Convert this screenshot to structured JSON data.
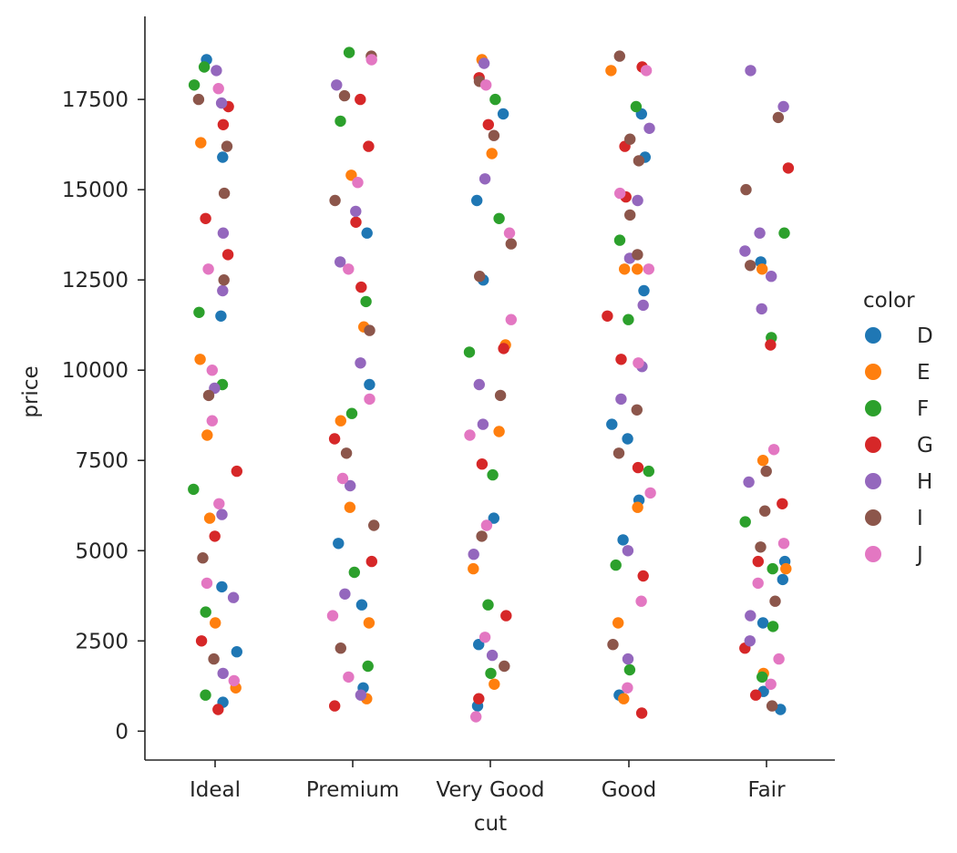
{
  "chart_data": {
    "type": "scatter",
    "subtype": "stripplot",
    "title": "",
    "xlabel": "cut",
    "ylabel": "price",
    "categories": [
      "Ideal",
      "Premium",
      "Very Good",
      "Good",
      "Fair"
    ],
    "ylim": [
      -800,
      19800
    ],
    "yticks": [
      0,
      2500,
      5000,
      7500,
      10000,
      12500,
      15000,
      17500
    ],
    "ytick_labels": [
      "0",
      "2500",
      "5000",
      "7500",
      "10000",
      "12500",
      "15000",
      "17500"
    ],
    "grid": false,
    "legend": {
      "title": "color",
      "placement": "right",
      "entries": [
        {
          "name": "D",
          "color": "#1f77b4"
        },
        {
          "name": "E",
          "color": "#ff7f0e"
        },
        {
          "name": "F",
          "color": "#2ca02c"
        },
        {
          "name": "G",
          "color": "#d62728"
        },
        {
          "name": "H",
          "color": "#9467bd"
        },
        {
          "name": "I",
          "color": "#8c564b"
        },
        {
          "name": "J",
          "color": "#e377c2"
        }
      ]
    },
    "series": [
      {
        "name": "D",
        "points": [
          [
            "Ideal",
            4000
          ],
          [
            "Ideal",
            18600
          ],
          [
            "Ideal",
            11500
          ],
          [
            "Ideal",
            2200
          ],
          [
            "Ideal",
            800
          ],
          [
            "Ideal",
            15900
          ],
          [
            "Premium",
            5200
          ],
          [
            "Premium",
            9600
          ],
          [
            "Premium",
            3500
          ],
          [
            "Premium",
            13800
          ],
          [
            "Premium",
            1200
          ],
          [
            "Very Good",
            12500
          ],
          [
            "Very Good",
            17100
          ],
          [
            "Very Good",
            14700
          ],
          [
            "Very Good",
            5900
          ],
          [
            "Very Good",
            2400
          ],
          [
            "Very Good",
            700
          ],
          [
            "Good",
            17100
          ],
          [
            "Good",
            15900
          ],
          [
            "Good",
            12200
          ],
          [
            "Good",
            8500
          ],
          [
            "Good",
            8100
          ],
          [
            "Good",
            6400
          ],
          [
            "Good",
            5300
          ],
          [
            "Good",
            1000
          ],
          [
            "Fair",
            13000
          ],
          [
            "Fair",
            4700
          ],
          [
            "Fair",
            4200
          ],
          [
            "Fair",
            3000
          ],
          [
            "Fair",
            1100
          ],
          [
            "Fair",
            600
          ]
        ]
      },
      {
        "name": "E",
        "points": [
          [
            "Ideal",
            16300
          ],
          [
            "Ideal",
            10300
          ],
          [
            "Ideal",
            8200
          ],
          [
            "Ideal",
            5900
          ],
          [
            "Ideal",
            3000
          ],
          [
            "Ideal",
            1200
          ],
          [
            "Premium",
            15400
          ],
          [
            "Premium",
            11200
          ],
          [
            "Premium",
            8600
          ],
          [
            "Premium",
            6200
          ],
          [
            "Premium",
            3000
          ],
          [
            "Premium",
            900
          ],
          [
            "Very Good",
            18600
          ],
          [
            "Very Good",
            16000
          ],
          [
            "Very Good",
            10700
          ],
          [
            "Very Good",
            8300
          ],
          [
            "Very Good",
            4500
          ],
          [
            "Very Good",
            1300
          ],
          [
            "Good",
            18300
          ],
          [
            "Good",
            12800
          ],
          [
            "Good",
            12800
          ],
          [
            "Good",
            6200
          ],
          [
            "Good",
            3000
          ],
          [
            "Good",
            900
          ],
          [
            "Fair",
            12800
          ],
          [
            "Fair",
            7500
          ],
          [
            "Fair",
            4500
          ],
          [
            "Fair",
            1600
          ]
        ]
      },
      {
        "name": "F",
        "points": [
          [
            "Ideal",
            17900
          ],
          [
            "Ideal",
            18400
          ],
          [
            "Ideal",
            11600
          ],
          [
            "Ideal",
            9600
          ],
          [
            "Ideal",
            6700
          ],
          [
            "Ideal",
            3300
          ],
          [
            "Ideal",
            1000
          ],
          [
            "Premium",
            18800
          ],
          [
            "Premium",
            16900
          ],
          [
            "Premium",
            11900
          ],
          [
            "Premium",
            8800
          ],
          [
            "Premium",
            4400
          ],
          [
            "Premium",
            1800
          ],
          [
            "Very Good",
            17500
          ],
          [
            "Very Good",
            14200
          ],
          [
            "Very Good",
            10500
          ],
          [
            "Very Good",
            7100
          ],
          [
            "Very Good",
            3500
          ],
          [
            "Very Good",
            1600
          ],
          [
            "Good",
            17300
          ],
          [
            "Good",
            13600
          ],
          [
            "Good",
            11400
          ],
          [
            "Good",
            7200
          ],
          [
            "Good",
            4600
          ],
          [
            "Good",
            1700
          ],
          [
            "Fair",
            13800
          ],
          [
            "Fair",
            10900
          ],
          [
            "Fair",
            5800
          ],
          [
            "Fair",
            4500
          ],
          [
            "Fair",
            2900
          ],
          [
            "Fair",
            1500
          ]
        ]
      },
      {
        "name": "G",
        "points": [
          [
            "Ideal",
            17300
          ],
          [
            "Ideal",
            16800
          ],
          [
            "Ideal",
            14200
          ],
          [
            "Ideal",
            13200
          ],
          [
            "Ideal",
            7200
          ],
          [
            "Ideal",
            5400
          ],
          [
            "Ideal",
            2500
          ],
          [
            "Ideal",
            600
          ],
          [
            "Premium",
            17500
          ],
          [
            "Premium",
            16200
          ],
          [
            "Premium",
            14100
          ],
          [
            "Premium",
            12300
          ],
          [
            "Premium",
            8100
          ],
          [
            "Premium",
            4700
          ],
          [
            "Premium",
            700
          ],
          [
            "Very Good",
            18100
          ],
          [
            "Very Good",
            16800
          ],
          [
            "Very Good",
            10600
          ],
          [
            "Very Good",
            7400
          ],
          [
            "Very Good",
            3200
          ],
          [
            "Very Good",
            900
          ],
          [
            "Good",
            18400
          ],
          [
            "Good",
            16200
          ],
          [
            "Good",
            14800
          ],
          [
            "Good",
            11500
          ],
          [
            "Good",
            10300
          ],
          [
            "Good",
            7300
          ],
          [
            "Good",
            4300
          ],
          [
            "Good",
            500
          ],
          [
            "Fair",
            15600
          ],
          [
            "Fair",
            10700
          ],
          [
            "Fair",
            6300
          ],
          [
            "Fair",
            4700
          ],
          [
            "Fair",
            2300
          ],
          [
            "Fair",
            1000
          ]
        ]
      },
      {
        "name": "H",
        "points": [
          [
            "Ideal",
            18300
          ],
          [
            "Ideal",
            17400
          ],
          [
            "Ideal",
            13800
          ],
          [
            "Ideal",
            12200
          ],
          [
            "Ideal",
            9500
          ],
          [
            "Ideal",
            6000
          ],
          [
            "Ideal",
            3700
          ],
          [
            "Ideal",
            1600
          ],
          [
            "Premium",
            17900
          ],
          [
            "Premium",
            14400
          ],
          [
            "Premium",
            13000
          ],
          [
            "Premium",
            10200
          ],
          [
            "Premium",
            6800
          ],
          [
            "Premium",
            3800
          ],
          [
            "Premium",
            1000
          ],
          [
            "Very Good",
            18500
          ],
          [
            "Very Good",
            15300
          ],
          [
            "Very Good",
            9600
          ],
          [
            "Very Good",
            8500
          ],
          [
            "Very Good",
            4900
          ],
          [
            "Very Good",
            2100
          ],
          [
            "Good",
            16700
          ],
          [
            "Good",
            14700
          ],
          [
            "Good",
            13100
          ],
          [
            "Good",
            11800
          ],
          [
            "Good",
            10100
          ],
          [
            "Good",
            9200
          ],
          [
            "Good",
            5000
          ],
          [
            "Good",
            2000
          ],
          [
            "Fair",
            18300
          ],
          [
            "Fair",
            17300
          ],
          [
            "Fair",
            13800
          ],
          [
            "Fair",
            13300
          ],
          [
            "Fair",
            12600
          ],
          [
            "Fair",
            11700
          ],
          [
            "Fair",
            6900
          ],
          [
            "Fair",
            3200
          ],
          [
            "Fair",
            2500
          ]
        ]
      },
      {
        "name": "I",
        "points": [
          [
            "Ideal",
            17500
          ],
          [
            "Ideal",
            16200
          ],
          [
            "Ideal",
            14900
          ],
          [
            "Ideal",
            12500
          ],
          [
            "Ideal",
            9300
          ],
          [
            "Ideal",
            4800
          ],
          [
            "Ideal",
            2000
          ],
          [
            "Premium",
            18700
          ],
          [
            "Premium",
            17600
          ],
          [
            "Premium",
            14700
          ],
          [
            "Premium",
            11100
          ],
          [
            "Premium",
            7700
          ],
          [
            "Premium",
            5700
          ],
          [
            "Premium",
            2300
          ],
          [
            "Very Good",
            18000
          ],
          [
            "Very Good",
            16500
          ],
          [
            "Very Good",
            13500
          ],
          [
            "Very Good",
            12600
          ],
          [
            "Very Good",
            9300
          ],
          [
            "Very Good",
            5400
          ],
          [
            "Very Good",
            1800
          ],
          [
            "Good",
            18700
          ],
          [
            "Good",
            16400
          ],
          [
            "Good",
            15800
          ],
          [
            "Good",
            14300
          ],
          [
            "Good",
            13200
          ],
          [
            "Good",
            8900
          ],
          [
            "Good",
            7700
          ],
          [
            "Good",
            2400
          ],
          [
            "Fair",
            17000
          ],
          [
            "Fair",
            15000
          ],
          [
            "Fair",
            12900
          ],
          [
            "Fair",
            7200
          ],
          [
            "Fair",
            6100
          ],
          [
            "Fair",
            5100
          ],
          [
            "Fair",
            3600
          ],
          [
            "Fair",
            700
          ]
        ]
      },
      {
        "name": "J",
        "points": [
          [
            "Ideal",
            17800
          ],
          [
            "Ideal",
            12800
          ],
          [
            "Ideal",
            10000
          ],
          [
            "Ideal",
            8600
          ],
          [
            "Ideal",
            6300
          ],
          [
            "Ideal",
            4100
          ],
          [
            "Ideal",
            1400
          ],
          [
            "Premium",
            18600
          ],
          [
            "Premium",
            15200
          ],
          [
            "Premium",
            12800
          ],
          [
            "Premium",
            9200
          ],
          [
            "Premium",
            7000
          ],
          [
            "Premium",
            3200
          ],
          [
            "Premium",
            1500
          ],
          [
            "Very Good",
            17900
          ],
          [
            "Very Good",
            13800
          ],
          [
            "Very Good",
            11400
          ],
          [
            "Very Good",
            8200
          ],
          [
            "Very Good",
            5700
          ],
          [
            "Very Good",
            2600
          ],
          [
            "Very Good",
            400
          ],
          [
            "Good",
            18300
          ],
          [
            "Good",
            14900
          ],
          [
            "Good",
            12800
          ],
          [
            "Good",
            10200
          ],
          [
            "Good",
            6600
          ],
          [
            "Good",
            3600
          ],
          [
            "Good",
            1200
          ],
          [
            "Fair",
            7800
          ],
          [
            "Fair",
            5200
          ],
          [
            "Fair",
            4100
          ],
          [
            "Fair",
            2000
          ],
          [
            "Fair",
            1300
          ]
        ]
      }
    ]
  }
}
